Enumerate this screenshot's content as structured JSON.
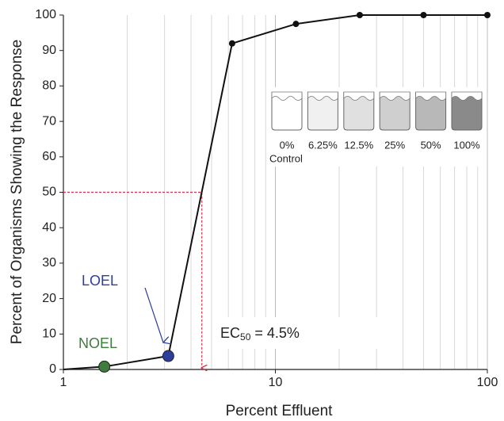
{
  "chart_data": {
    "type": "line",
    "x_label": "Percent Effluent",
    "y_label": "Percent of Organisms Showing the Response",
    "xlog": true,
    "xlim": [
      1,
      100
    ],
    "xticks": [
      1,
      10,
      100
    ],
    "minor_xticks": [
      2,
      3,
      4,
      5,
      6,
      7,
      8,
      9,
      20,
      30,
      40,
      50,
      60,
      70,
      80,
      90
    ],
    "ylim": [
      0,
      100
    ],
    "yticks": [
      0,
      10,
      20,
      30,
      40,
      50,
      60,
      70,
      80,
      90,
      100
    ],
    "grid": true,
    "series": [
      {
        "color": "#111111",
        "x": [
          1,
          1.56,
          3.125,
          6.25,
          12.5,
          25,
          50,
          100
        ],
        "values": [
          0,
          0.8,
          3.8,
          92,
          97.5,
          100,
          100,
          100
        ],
        "marker_colors": [
          null,
          "#3e7d3e",
          "#2d3f9e",
          "#111111",
          "#111111",
          "#111111",
          "#111111",
          "#111111"
        ]
      }
    ],
    "annotations": {
      "loel": "LOEL",
      "noel": "NOEL",
      "ec50_main": "EC",
      "ec50_sub": "50",
      "ec50_rest": " = 4.5%"
    },
    "ec50": {
      "x": 4.5,
      "y": 50,
      "color": "#d0304a"
    },
    "inset": {
      "labels": [
        "0%",
        "6.25%",
        "12.5%",
        "25%",
        "50%",
        "100%"
      ],
      "sublabel": "Control"
    }
  }
}
